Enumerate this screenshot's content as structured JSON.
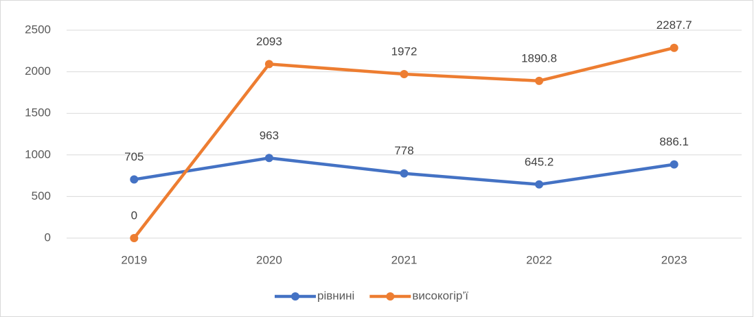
{
  "chart_data": {
    "type": "line",
    "categories": [
      "2019",
      "2020",
      "2021",
      "2022",
      "2023"
    ],
    "series": [
      {
        "name": "рівнині",
        "color": "#4472c4",
        "values": [
          705,
          963,
          778,
          645.2,
          886.1
        ]
      },
      {
        "name": "високогір’ї",
        "color": "#ed7d31",
        "values": [
          0,
          2093,
          1972,
          1890.8,
          2287.7
        ]
      }
    ],
    "ylim": [
      0,
      2500
    ],
    "yticks": [
      0,
      500,
      1000,
      1500,
      2000,
      2500
    ],
    "grid": true,
    "legend": "bottom"
  }
}
